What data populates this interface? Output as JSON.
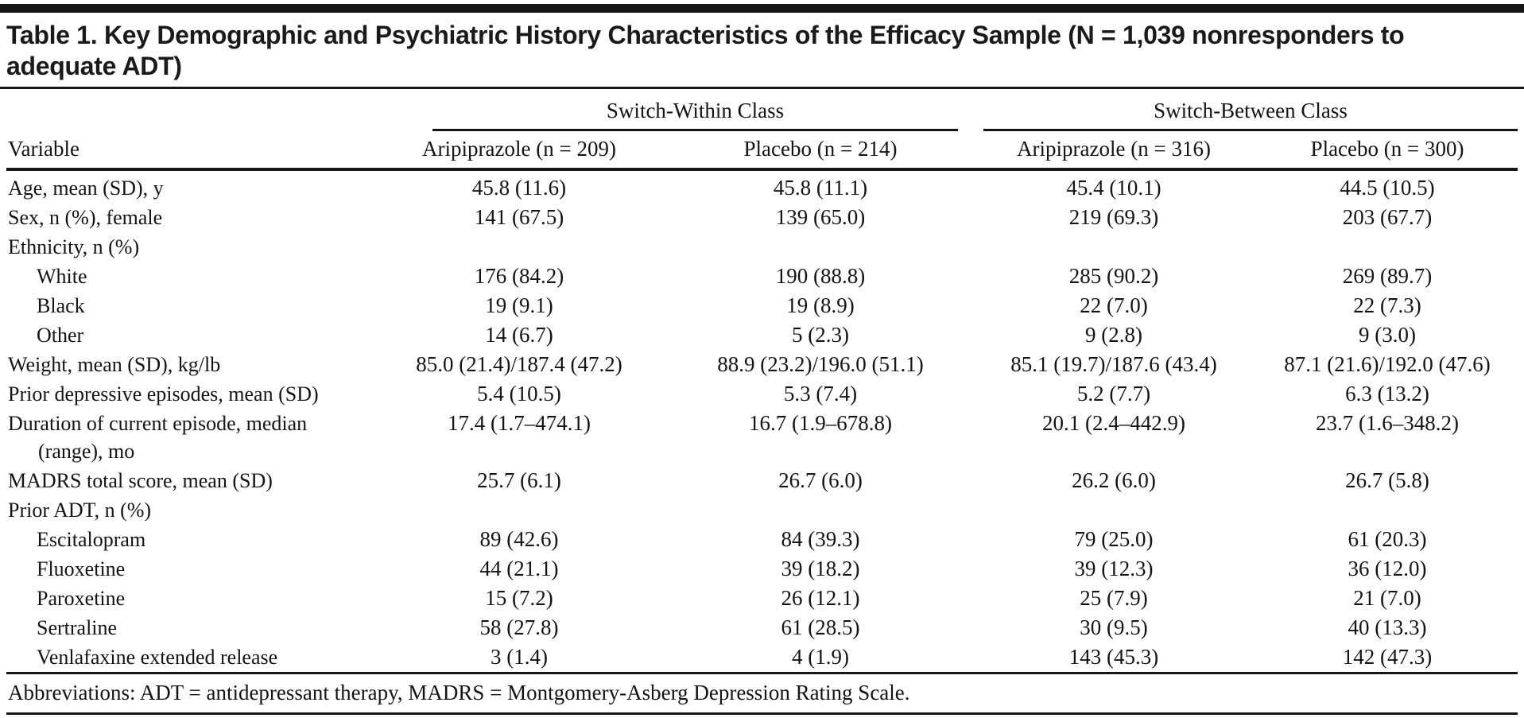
{
  "title": "Table 1. Key Demographic and Psychiatric History Characteristics of the Efficacy Sample (N = 1,039 nonresponders to adequate ADT)",
  "header": {
    "variable_label": "Variable",
    "groups": [
      {
        "label": "Switch-Within Class",
        "columns": [
          "Aripiprazole (n = 209)",
          "Placebo (n = 214)"
        ]
      },
      {
        "label": "Switch-Between Class",
        "columns": [
          "Aripiprazole (n = 316)",
          "Placebo (n = 300)"
        ]
      }
    ]
  },
  "rows": [
    {
      "label": "Age, mean (SD), y",
      "indent": 0,
      "values": [
        "45.8 (11.6)",
        "45.8 (11.1)",
        "45.4 (10.1)",
        "44.5 (10.5)"
      ]
    },
    {
      "label": "Sex, n (%), female",
      "indent": 0,
      "values": [
        "141 (67.5)",
        "139 (65.0)",
        "219 (69.3)",
        "203 (67.7)"
      ]
    },
    {
      "label": "Ethnicity, n (%)",
      "indent": 0,
      "values": [
        "",
        "",
        "",
        ""
      ]
    },
    {
      "label": "White",
      "indent": 1,
      "values": [
        "176 (84.2)",
        "190 (88.8)",
        "285 (90.2)",
        "269 (89.7)"
      ]
    },
    {
      "label": "Black",
      "indent": 1,
      "values": [
        "19 (9.1)",
        "19 (8.9)",
        "22 (7.0)",
        "22 (7.3)"
      ]
    },
    {
      "label": "Other",
      "indent": 1,
      "values": [
        "14 (6.7)",
        "5 (2.3)",
        "9 (2.8)",
        "9 (3.0)"
      ]
    },
    {
      "label": "Weight, mean (SD), kg/lb",
      "indent": 0,
      "values": [
        "85.0 (21.4)/187.4 (47.2)",
        "88.9 (23.2)/196.0 (51.1)",
        "85.1 (19.7)/187.6 (43.4)",
        "87.1 (21.6)/192.0 (47.6)"
      ]
    },
    {
      "label": "Prior depressive episodes, mean (SD)",
      "indent": 0,
      "values": [
        "5.4 (10.5)",
        "5.3 (7.4)",
        "5.2 (7.7)",
        "6.3 (13.2)"
      ]
    },
    {
      "label": "Duration of current episode, median (range), mo",
      "indent": 0,
      "values": [
        "17.4 (1.7–474.1)",
        "16.7 (1.9–678.8)",
        "20.1 (2.4–442.9)",
        "23.7 (1.6–348.2)"
      ]
    },
    {
      "label": "MADRS total score, mean (SD)",
      "indent": 0,
      "values": [
        "25.7 (6.1)",
        "26.7 (6.0)",
        "26.2 (6.0)",
        "26.7 (5.8)"
      ]
    },
    {
      "label": "Prior ADT, n (%)",
      "indent": 0,
      "values": [
        "",
        "",
        "",
        ""
      ]
    },
    {
      "label": "Escitalopram",
      "indent": 1,
      "values": [
        "89 (42.6)",
        "84 (39.3)",
        "79 (25.0)",
        "61 (20.3)"
      ]
    },
    {
      "label": "Fluoxetine",
      "indent": 1,
      "values": [
        "44 (21.1)",
        "39 (18.2)",
        "39 (12.3)",
        "36 (12.0)"
      ]
    },
    {
      "label": "Paroxetine",
      "indent": 1,
      "values": [
        "15 (7.2)",
        "26 (12.1)",
        "25 (7.9)",
        "21 (7.0)"
      ]
    },
    {
      "label": "Sertraline",
      "indent": 1,
      "values": [
        "58 (27.8)",
        "61 (28.5)",
        "30 (9.5)",
        "40 (13.3)"
      ]
    },
    {
      "label": "Venlafaxine extended release",
      "indent": 1,
      "values": [
        "3 (1.4)",
        "4 (1.9)",
        "143 (45.3)",
        "142 (47.3)"
      ]
    }
  ],
  "footnote": "Abbreviations: ADT = antidepressant therapy, MADRS = Montgomery-Asberg Depression Rating Scale.",
  "colors": {
    "text": "#141414",
    "rule": "#161616",
    "background": "#ffffff"
  }
}
